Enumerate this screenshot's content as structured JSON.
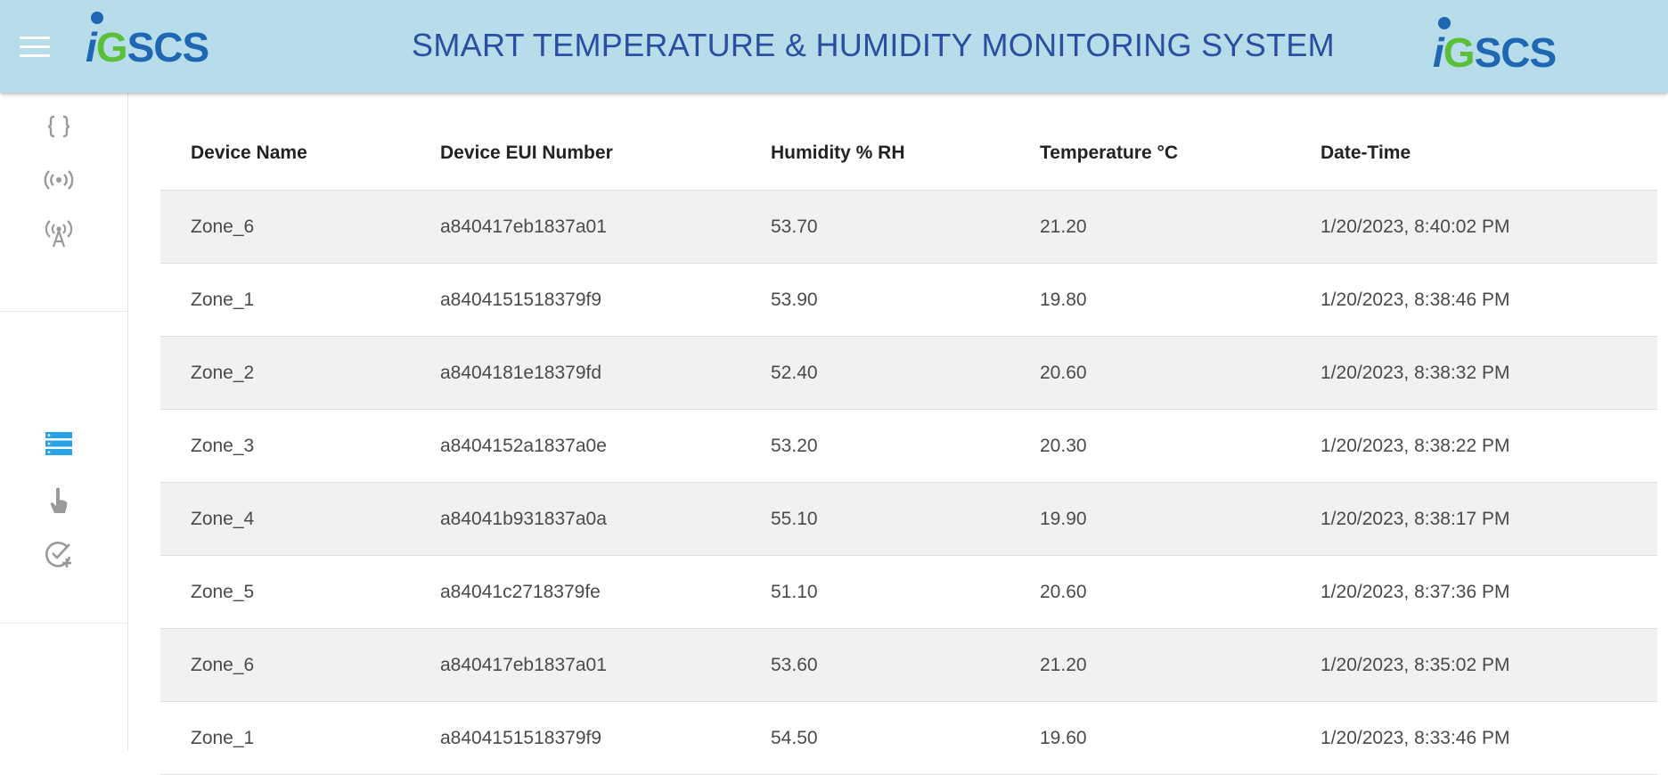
{
  "header": {
    "title": "SMART TEMPERATURE & HUMIDITY MONITORING SYSTEM",
    "logo_left": {
      "i": "i",
      "g": "G",
      "rest": "SCS"
    },
    "logo_right": {
      "i": "i",
      "g": "G",
      "rest": "SCS"
    },
    "menu_icon": "hamburger-icon"
  },
  "sidebar": {
    "items": [
      {
        "icon": "curly-braces-icon",
        "glyph": "{ }"
      },
      {
        "icon": "broadcast-icon",
        "glyph": "((•))"
      },
      {
        "icon": "antenna-icon",
        "glyph": "tower"
      },
      {
        "icon": "list-icon",
        "glyph": "list",
        "active": true,
        "color": "#29a3e6"
      },
      {
        "icon": "touch-icon",
        "glyph": "hand"
      },
      {
        "icon": "check-add-icon",
        "glyph": "check-plus"
      }
    ]
  },
  "table": {
    "columns": [
      "Device Name",
      "Device EUI Number",
      "Humidity % RH",
      "Temperature °C",
      "Date-Time"
    ],
    "rows": [
      [
        "Zone_6",
        "a840417eb1837a01",
        "53.70",
        "21.20",
        "1/20/2023, 8:40:02 PM"
      ],
      [
        "Zone_1",
        "a8404151518379f9",
        "53.90",
        "19.80",
        "1/20/2023, 8:38:46 PM"
      ],
      [
        "Zone_2",
        "a8404181e18379fd",
        "52.40",
        "20.60",
        "1/20/2023, 8:38:32 PM"
      ],
      [
        "Zone_3",
        "a8404152a1837a0e",
        "53.20",
        "20.30",
        "1/20/2023, 8:38:22 PM"
      ],
      [
        "Zone_4",
        "a84041b931837a0a",
        "55.10",
        "19.90",
        "1/20/2023, 8:38:17 PM"
      ],
      [
        "Zone_5",
        "a84041c2718379fe",
        "51.10",
        "20.60",
        "1/20/2023, 8:37:36 PM"
      ],
      [
        "Zone_6",
        "a840417eb1837a01",
        "53.60",
        "21.20",
        "1/20/2023, 8:35:02 PM"
      ],
      [
        "Zone_1",
        "a8404151518379f9",
        "54.50",
        "19.60",
        "1/20/2023, 8:33:46 PM"
      ]
    ]
  },
  "colors": {
    "header_bg": "#b7dcea",
    "title": "#2b4fa0",
    "accent": "#29a3e6",
    "row_alt": "#f1f1f1"
  }
}
